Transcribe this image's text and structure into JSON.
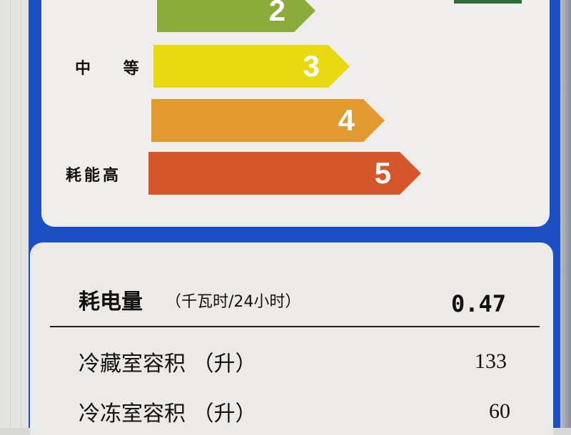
{
  "grades": [
    {
      "number": "2",
      "color": "#8aab3a"
    },
    {
      "number": "3",
      "color": "#e8d910"
    },
    {
      "number": "4",
      "color": "#e29a30"
    },
    {
      "number": "5",
      "color": "#d4562a"
    }
  ],
  "labels": {
    "medium": "中 等",
    "high": "耗能高"
  },
  "consumption": {
    "label": "耗电量",
    "unit": "（千瓦时/24小时）",
    "value": "0.47"
  },
  "rows": [
    {
      "label": "冷藏室容积 （升）",
      "value": "133"
    },
    {
      "label": "冷冻室容积 （升）",
      "value": "60"
    }
  ],
  "frame_color": "#1d4fc4"
}
